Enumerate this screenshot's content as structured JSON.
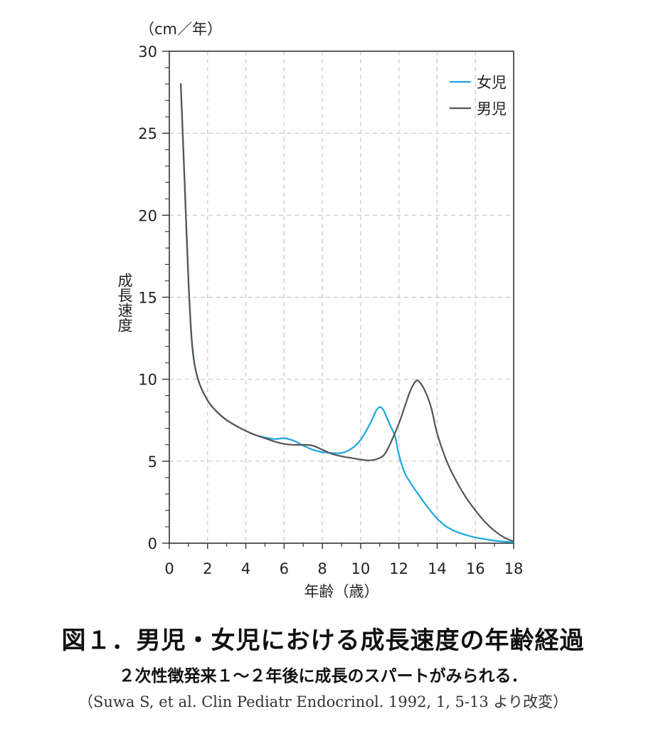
{
  "chart_data": {
    "type": "line",
    "title": "図１．男児・女児における成長速度の年齢経過",
    "subtitle": "２次性徴発来１～２年後に成長のスパートがみられる．",
    "source": "（Suwa S, et al. Clin Pediatr Endocrinol. 1992, 1, 5-13 より改変）",
    "xlabel": "年齢（歳）",
    "ylabel": "成長速度",
    "yunit": "（cm／年）",
    "xlim": [
      0,
      18
    ],
    "ylim": [
      0,
      30
    ],
    "xticks": [
      0,
      2,
      4,
      6,
      8,
      10,
      12,
      14,
      16,
      18
    ],
    "yticks": [
      0,
      5,
      10,
      15,
      20,
      25,
      30
    ],
    "grid": true,
    "legend_position": "top-right",
    "series": [
      {
        "name": "女児",
        "color": "#1aa7e0",
        "points": [
          [
            0.6,
            28
          ],
          [
            0.8,
            22
          ],
          [
            1.0,
            16
          ],
          [
            1.2,
            12
          ],
          [
            1.5,
            10
          ],
          [
            2.0,
            8.7
          ],
          [
            2.5,
            8.0
          ],
          [
            3.0,
            7.5
          ],
          [
            3.5,
            7.15
          ],
          [
            4.0,
            6.85
          ],
          [
            4.5,
            6.6
          ],
          [
            5.0,
            6.45
          ],
          [
            5.5,
            6.35
          ],
          [
            6.0,
            6.4
          ],
          [
            6.5,
            6.25
          ],
          [
            7.0,
            5.95
          ],
          [
            7.5,
            5.7
          ],
          [
            8.0,
            5.55
          ],
          [
            8.5,
            5.5
          ],
          [
            9.0,
            5.5
          ],
          [
            9.5,
            5.75
          ],
          [
            10.0,
            6.3
          ],
          [
            10.5,
            7.3
          ],
          [
            10.8,
            8.05
          ],
          [
            11.0,
            8.3
          ],
          [
            11.2,
            8.1
          ],
          [
            11.5,
            7.3
          ],
          [
            11.8,
            6.5
          ],
          [
            12.0,
            5.4
          ],
          [
            12.3,
            4.3
          ],
          [
            12.6,
            3.7
          ],
          [
            13.0,
            3.0
          ],
          [
            13.5,
            2.2
          ],
          [
            14.0,
            1.5
          ],
          [
            14.5,
            1.0
          ],
          [
            15.0,
            0.7
          ],
          [
            15.5,
            0.5
          ],
          [
            16.0,
            0.35
          ],
          [
            16.5,
            0.25
          ],
          [
            17.0,
            0.15
          ],
          [
            17.5,
            0.1
          ],
          [
            18.0,
            0.05
          ]
        ]
      },
      {
        "name": "男児",
        "color": "#555555",
        "points": [
          [
            0.6,
            28
          ],
          [
            0.8,
            22
          ],
          [
            1.0,
            16
          ],
          [
            1.2,
            12
          ],
          [
            1.5,
            10
          ],
          [
            2.0,
            8.7
          ],
          [
            2.5,
            8.0
          ],
          [
            3.0,
            7.5
          ],
          [
            3.5,
            7.15
          ],
          [
            4.0,
            6.85
          ],
          [
            4.5,
            6.6
          ],
          [
            5.0,
            6.4
          ],
          [
            5.5,
            6.2
          ],
          [
            6.0,
            6.05
          ],
          [
            6.5,
            6.0
          ],
          [
            7.0,
            6.0
          ],
          [
            7.5,
            5.95
          ],
          [
            8.0,
            5.7
          ],
          [
            8.5,
            5.45
          ],
          [
            9.0,
            5.3
          ],
          [
            9.5,
            5.2
          ],
          [
            10.0,
            5.1
          ],
          [
            10.5,
            5.05
          ],
          [
            11.0,
            5.2
          ],
          [
            11.3,
            5.5
          ],
          [
            11.6,
            6.2
          ],
          [
            12.0,
            7.3
          ],
          [
            12.3,
            8.3
          ],
          [
            12.6,
            9.3
          ],
          [
            12.9,
            9.9
          ],
          [
            13.1,
            9.8
          ],
          [
            13.4,
            9.2
          ],
          [
            13.7,
            8.2
          ],
          [
            14.0,
            6.7
          ],
          [
            14.5,
            5.0
          ],
          [
            15.0,
            3.8
          ],
          [
            15.5,
            2.8
          ],
          [
            16.0,
            2.0
          ],
          [
            16.5,
            1.3
          ],
          [
            17.0,
            0.75
          ],
          [
            17.5,
            0.35
          ],
          [
            18.0,
            0.1
          ]
        ]
      }
    ]
  }
}
